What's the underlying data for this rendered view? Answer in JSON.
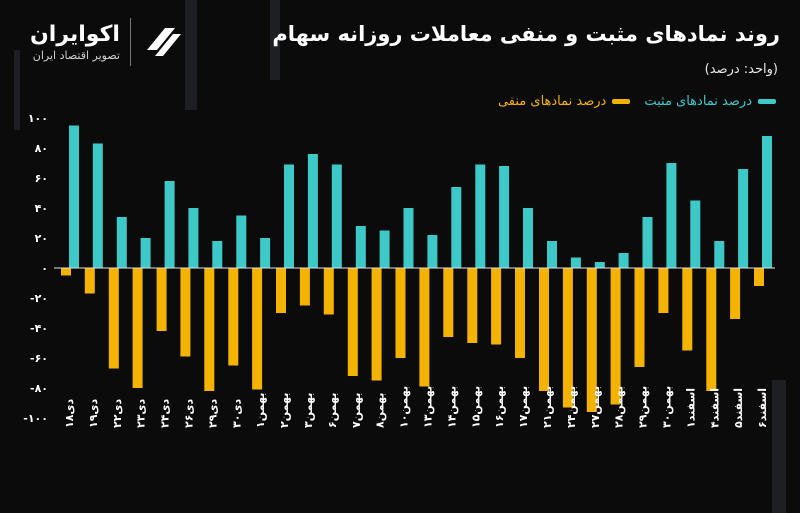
{
  "header": {
    "title": "روند نمادهای مثبت و منفی معاملات روزانه سهام",
    "unit": "(واحد: درصد)"
  },
  "brand": {
    "name": "اکوایران",
    "tagline": "تصویر اقتصاد ایران"
  },
  "legend": {
    "positive": "درصد نمادهای مثبت",
    "negative": "درصد نمادهای منفی"
  },
  "colors": {
    "positive": "#3ec9c9",
    "negative": "#f5b301",
    "background": "#0b0b0c",
    "zero_line": "#e0e0e0"
  },
  "chart_data": {
    "type": "bar",
    "y_ticks": [
      "۱۰۰",
      "۸۰",
      "۶۰",
      "۴۰",
      "۲۰",
      "۰",
      "-۲۰",
      "-۴۰",
      "-۶۰",
      "-۸۰",
      "-۱۰۰"
    ],
    "ylim": [
      -100,
      100
    ],
    "categories": [
      "دی۱۸",
      "دی۱۹",
      "دی۲۲",
      "دی۲۳",
      "دی۲۴",
      "دی۲۶",
      "دی۲۹",
      "دی۳۰",
      "بهمن۱",
      "بهمن۲",
      "بهمن۳",
      "بهمن۶",
      "بهمن۷",
      "بهمن۸",
      "بهمن۱۰",
      "بهمن۱۳",
      "بهمن۱۴",
      "بهمن۱۵",
      "بهمن۱۶",
      "بهمن۱۷",
      "بهمن۲۱",
      "بهمن۲۴",
      "بهمن۲۷",
      "بهمن۲۸",
      "بهمن۲۹",
      "بهمن۳۰",
      "اسفند۱",
      "اسفند۴",
      "اسفند۵",
      "اسفند۶"
    ],
    "series": [
      {
        "name": "درصد نمادهای مثبت",
        "values": [
          95,
          83,
          34,
          20,
          58,
          40,
          18,
          35,
          20,
          69,
          76,
          69,
          28,
          25,
          40,
          22,
          54,
          69,
          68,
          40,
          18,
          7,
          4,
          10,
          34,
          70,
          45,
          18,
          66,
          88
        ]
      },
      {
        "name": "درصد نمادهای منفی",
        "values": [
          -5,
          -17,
          -67,
          -80,
          -42,
          -59,
          -82,
          -65,
          -81,
          -30,
          -25,
          -31,
          -72,
          -75,
          -60,
          -79,
          -46,
          -50,
          -51,
          -60,
          -82,
          -93,
          -96,
          -91,
          -66,
          -30,
          -55,
          -82,
          -34,
          -12
        ]
      }
    ],
    "grid": false
  }
}
